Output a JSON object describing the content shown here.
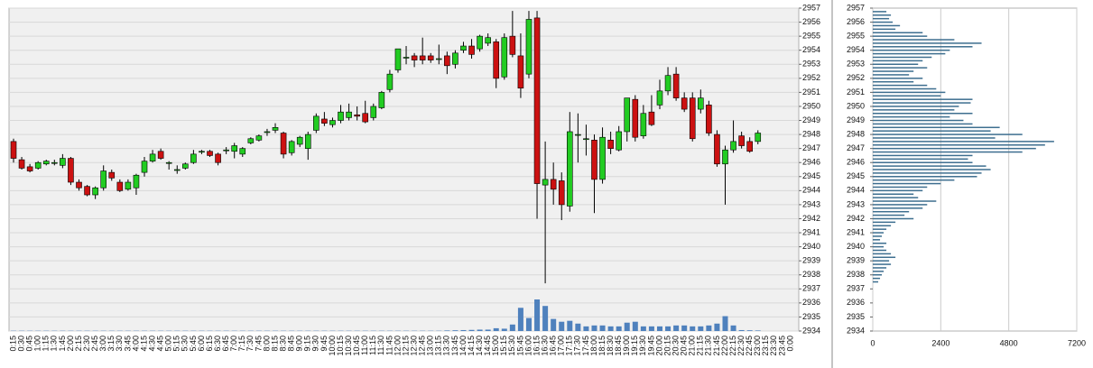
{
  "chart_data": [
    {
      "type": "candlestick",
      "categories": [
        "0:15",
        "0:30",
        "0:45",
        "1:00",
        "1:15",
        "1:30",
        "1:45",
        "2:00",
        "2:15",
        "2:30",
        "2:45",
        "3:00",
        "3:15",
        "3:30",
        "3:45",
        "4:00",
        "4:15",
        "4:30",
        "4:45",
        "5:00",
        "5:15",
        "5:30",
        "5:45",
        "6:00",
        "6:15",
        "6:30",
        "6:45",
        "7:00",
        "7:15",
        "7:30",
        "7:45",
        "8:00",
        "8:15",
        "8:30",
        "8:45",
        "9:00",
        "9:15",
        "9:30",
        "9:45",
        "10:00",
        "10:15",
        "10:30",
        "10:45",
        "11:00",
        "11:15",
        "11:30",
        "11:45",
        "12:00",
        "12:15",
        "12:30",
        "12:45",
        "13:00",
        "13:15",
        "13:30",
        "13:45",
        "14:00",
        "14:15",
        "14:30",
        "14:45",
        "15:00",
        "15:15",
        "15:30",
        "15:45",
        "16:00",
        "16:15",
        "16:30",
        "16:45",
        "17:00",
        "17:15",
        "17:30",
        "17:45",
        "18:00",
        "18:15",
        "18:30",
        "18:45",
        "19:00",
        "19:15",
        "19:30",
        "19:45",
        "20:00",
        "20:15",
        "20:30",
        "20:45",
        "21:00",
        "21:15",
        "21:30",
        "21:45",
        "22:00",
        "22:15",
        "22:30",
        "22:45",
        "23:00",
        "23:15",
        "23:30",
        "23:45",
        "0:00"
      ],
      "open": [
        2947.5,
        2946.2,
        2945.7,
        2945.6,
        2945.9,
        2946.0,
        2945.8,
        2946.3,
        2944.6,
        2944.3,
        2943.7,
        2944.2,
        2945.3,
        2944.6,
        2944.1,
        2944.2,
        2945.3,
        2946.1,
        2946.8,
        2946.0,
        2945.5,
        2945.6,
        2946.0,
        2946.8,
        2946.8,
        2946.6,
        2946.9,
        2946.8,
        2946.6,
        2947.4,
        2947.6,
        2948.2,
        2948.3,
        2948.1,
        2946.7,
        2947.3,
        2947.0,
        2948.3,
        2949.1,
        2948.7,
        2949.0,
        2949.2,
        2949.4,
        2949.5,
        2949.2,
        2949.9,
        2951.2,
        2952.6,
        2953.5,
        2953.6,
        2953.6,
        2953.6,
        2953.4,
        2953.6,
        2953.0,
        2954.0,
        2954.3,
        2954.1,
        2954.5,
        2954.6,
        2952.1,
        2955.0,
        2953.6,
        2952.3,
        2956.3,
        2944.4,
        2944.8,
        2944.7,
        2942.9,
        2948.0,
        2947.7,
        2947.6,
        2944.8,
        2947.6,
        2946.9,
        2948.2,
        2950.5,
        2947.9,
        2949.6,
        2950.1,
        2951.1,
        2952.3,
        2950.6,
        2950.6,
        2949.8,
        2950.1,
        2948.0,
        2945.9,
        2946.9,
        2947.9,
        2947.5,
        2947.5,
        null,
        null,
        null,
        null
      ],
      "high": [
        2947.7,
        2946.4,
        2945.9,
        2946.1,
        2946.2,
        2946.2,
        2946.6,
        2946.4,
        2944.8,
        2944.4,
        2944.3,
        2945.8,
        2945.5,
        2944.8,
        2944.8,
        2945.2,
        2946.4,
        2946.9,
        2947.0,
        2946.1,
        2945.8,
        2946.0,
        2946.9,
        2946.9,
        2946.9,
        2946.7,
        2947.1,
        2947.4,
        2947.1,
        2947.8,
        2948.0,
        2948.4,
        2948.8,
        2948.2,
        2947.6,
        2947.9,
        2948.2,
        2949.5,
        2949.6,
        2949.2,
        2950.1,
        2950.2,
        2950.0,
        2950.4,
        2950.2,
        2951.1,
        2952.6,
        2954.1,
        2954.3,
        2953.8,
        2954.9,
        2953.8,
        2954.4,
        2953.9,
        2954.0,
        2954.6,
        2954.8,
        2955.1,
        2955.2,
        2954.8,
        2955.2,
        2956.8,
        2955.2,
        2956.8,
        2956.8,
        2947.5,
        2946.0,
        2945.3,
        2949.6,
        2949.5,
        2948.7,
        2948.0,
        2948.5,
        2948.2,
        2948.6,
        2950.6,
        2950.8,
        2950.1,
        2950.8,
        2951.9,
        2952.8,
        2952.8,
        2951.0,
        2951.0,
        2951.2,
        2950.4,
        2948.3,
        2947.2,
        2949.0,
        2948.2,
        2947.8,
        2948.3,
        null,
        null,
        null,
        null
      ],
      "low": [
        2946.0,
        2945.5,
        2945.3,
        2945.5,
        2945.8,
        2945.8,
        2945.6,
        2944.4,
        2944.0,
        2943.6,
        2943.4,
        2944.0,
        2944.7,
        2943.9,
        2944.0,
        2943.7,
        2945.0,
        2946.0,
        2946.2,
        2945.5,
        2945.2,
        2945.5,
        2945.9,
        2946.6,
        2946.4,
        2945.8,
        2946.6,
        2946.3,
        2946.4,
        2947.3,
        2947.5,
        2947.9,
        2948.1,
        2946.3,
        2946.5,
        2947.1,
        2946.2,
        2948.1,
        2948.6,
        2948.5,
        2948.8,
        2949.0,
        2949.0,
        2948.8,
        2949.0,
        2949.8,
        2951.0,
        2952.4,
        2953.0,
        2952.8,
        2953.0,
        2953.1,
        2953.0,
        2952.3,
        2952.7,
        2953.8,
        2953.4,
        2953.9,
        2954.3,
        2951.3,
        2951.9,
        2953.5,
        2950.6,
        2952.0,
        2942.0,
        2937.4,
        2943.0,
        2941.9,
        2942.5,
        2946.0,
        2946.5,
        2942.4,
        2944.5,
        2946.6,
        2946.8,
        2947.5,
        2947.5,
        2947.7,
        2948.6,
        2949.8,
        2950.8,
        2950.4,
        2949.6,
        2947.5,
        2949.5,
        2947.9,
        2945.7,
        2943.0,
        2946.7,
        2947.0,
        2946.7,
        2947.3,
        null,
        null,
        null,
        null
      ],
      "close": [
        2946.3,
        2945.6,
        2945.4,
        2946.0,
        2946.1,
        2946.0,
        2946.3,
        2944.6,
        2944.2,
        2943.7,
        2944.2,
        2945.4,
        2944.9,
        2944.0,
        2944.6,
        2945.1,
        2946.1,
        2946.6,
        2946.3,
        2946.0,
        2945.5,
        2945.9,
        2946.6,
        2946.8,
        2946.5,
        2946.0,
        2946.9,
        2947.2,
        2947.0,
        2947.7,
        2947.9,
        2948.2,
        2948.5,
        2946.6,
        2947.5,
        2947.8,
        2948.0,
        2949.3,
        2948.8,
        2949.0,
        2949.6,
        2949.6,
        2949.3,
        2948.9,
        2950.0,
        2951.0,
        2952.3,
        2954.1,
        2953.5,
        2953.3,
        2953.3,
        2953.3,
        2953.4,
        2952.9,
        2953.8,
        2954.3,
        2953.7,
        2955.0,
        2954.9,
        2952.0,
        2954.9,
        2953.7,
        2951.3,
        2956.2,
        2944.5,
        2944.8,
        2944.1,
        2943.0,
        2948.2,
        2948.0,
        2947.7,
        2944.8,
        2947.8,
        2947.0,
        2948.2,
        2950.6,
        2947.8,
        2949.5,
        2948.7,
        2951.1,
        2952.2,
        2950.6,
        2949.8,
        2947.7,
        2950.6,
        2948.1,
        2945.9,
        2946.9,
        2947.5,
        2947.2,
        2946.8,
        2948.1,
        null,
        null,
        null,
        null
      ],
      "volume": [
        30,
        30,
        30,
        30,
        30,
        30,
        30,
        30,
        30,
        30,
        30,
        30,
        30,
        30,
        30,
        30,
        30,
        30,
        30,
        30,
        30,
        30,
        30,
        30,
        30,
        30,
        30,
        30,
        30,
        30,
        30,
        30,
        30,
        30,
        30,
        30,
        30,
        30,
        30,
        30,
        30,
        30,
        30,
        30,
        30,
        30,
        30,
        30,
        30,
        30,
        30,
        30,
        30,
        60,
        80,
        100,
        120,
        150,
        150,
        300,
        250,
        700,
        2500,
        1400,
        3400,
        2700,
        1300,
        1000,
        1100,
        800,
        500,
        600,
        600,
        500,
        500,
        900,
        1000,
        500,
        500,
        500,
        500,
        600,
        600,
        500,
        500,
        600,
        800,
        1600,
        600,
        100,
        80,
        60,
        null,
        null,
        null,
        null
      ],
      "up_color": "#22cc22",
      "down_color": "#cc1111",
      "volume_color": "#4f81bd",
      "ylim": [
        2934,
        2957
      ],
      "yticks": [
        2934,
        2935,
        2936,
        2937,
        2938,
        2939,
        2940,
        2941,
        2942,
        2943,
        2944,
        2945,
        2946,
        2947,
        2948,
        2949,
        2950,
        2951,
        2952,
        2953,
        2954,
        2955,
        2956,
        2957
      ],
      "grid": true
    },
    {
      "type": "barh",
      "y": [
        2937.5,
        2937.75,
        2938,
        2938.25,
        2938.5,
        2938.75,
        2939,
        2939.25,
        2939.5,
        2939.75,
        2940,
        2940.25,
        2940.5,
        2940.75,
        2941,
        2941.25,
        2941.5,
        2941.75,
        2942,
        2942.25,
        2942.5,
        2942.75,
        2943,
        2943.25,
        2943.5,
        2943.75,
        2944,
        2944.25,
        2944.5,
        2944.75,
        2945,
        2945.25,
        2945.5,
        2945.75,
        2946,
        2946.25,
        2946.5,
        2946.75,
        2947,
        2947.25,
        2947.5,
        2947.75,
        2948,
        2948.25,
        2948.5,
        2948.75,
        2949,
        2949.25,
        2949.5,
        2949.75,
        2950,
        2950.25,
        2950.5,
        2950.75,
        2951,
        2951.25,
        2951.5,
        2951.75,
        2952,
        2952.25,
        2952.5,
        2952.75,
        2953,
        2953.25,
        2953.5,
        2953.75,
        2954,
        2954.25,
        2954.5,
        2954.75,
        2955,
        2955.25,
        2955.5,
        2955.75,
        2956,
        2956.25,
        2956.5,
        2956.75
      ],
      "values": [
        192,
        256,
        320,
        384,
        480,
        640,
        576,
        800,
        640,
        480,
        384,
        480,
        256,
        320,
        384,
        480,
        640,
        800,
        1440,
        1120,
        1280,
        1760,
        1920,
        2240,
        1600,
        1440,
        1760,
        1920,
        2400,
        2880,
        3680,
        3840,
        4160,
        4000,
        3520,
        3360,
        3520,
        5280,
        5760,
        6080,
        6400,
        4320,
        5280,
        4160,
        4480,
        3520,
        3200,
        2720,
        3520,
        2880,
        3040,
        3456,
        3520,
        2400,
        2560,
        2240,
        1920,
        1440,
        1760,
        1280,
        1440,
        1920,
        1600,
        1760,
        2080,
        2560,
        2720,
        3520,
        3840,
        2880,
        1920,
        1760,
        800,
        960,
        704,
        576,
        640,
        480
      ],
      "color": "#3d6e8f",
      "xlim": [
        0,
        7200
      ],
      "xticks": [
        0,
        2400,
        4800,
        7200
      ],
      "ylim": [
        2934,
        2957
      ],
      "yticks": [
        2934,
        2935,
        2936,
        2937,
        2938,
        2939,
        2940,
        2941,
        2942,
        2943,
        2944,
        2945,
        2946,
        2947,
        2948,
        2949,
        2950,
        2951,
        2952,
        2953,
        2954,
        2955,
        2956,
        2957
      ],
      "grid": true
    }
  ]
}
